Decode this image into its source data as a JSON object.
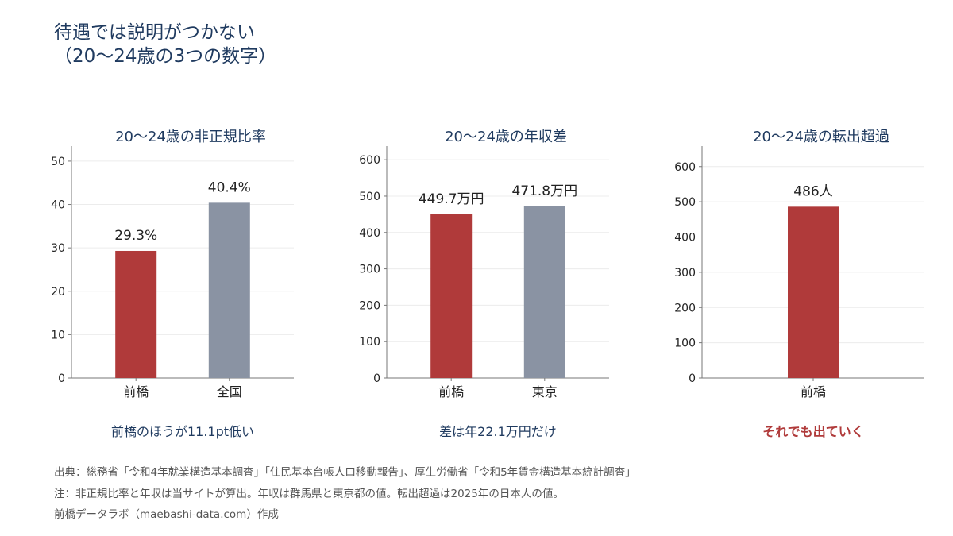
{
  "title": {
    "line1": "待遇では説明がつかない",
    "line2": "（20〜24歳の3つの数字）"
  },
  "colors": {
    "highlight": "#b03a3a",
    "neutral": "#8a93a3",
    "text": "#1f3a5f",
    "axis": "#777777"
  },
  "chart_data": [
    {
      "type": "bar",
      "title": "20〜24歳の非正規比率",
      "categories": [
        "前橋",
        "全国"
      ],
      "values": [
        29.3,
        40.4
      ],
      "labels": [
        "29.3%",
        "40.4%"
      ],
      "ylim": [
        0,
        52
      ],
      "yticks": [
        0,
        10,
        20,
        30,
        40,
        50
      ],
      "grid": true,
      "caption": "前橋のほうが11.1pt低い"
    },
    {
      "type": "bar",
      "title": "20〜24歳の年収差",
      "categories": [
        "前橋",
        "東京"
      ],
      "values": [
        449.7,
        471.8
      ],
      "labels": [
        "449.7万円",
        "471.8万円"
      ],
      "ylim": [
        0,
        620
      ],
      "yticks": [
        0,
        100,
        200,
        300,
        400,
        500,
        600
      ],
      "grid": true,
      "caption": "差は年22.1万円だけ"
    },
    {
      "type": "bar",
      "title": "20〜24歳の転出超過",
      "categories": [
        "前橋"
      ],
      "values": [
        486
      ],
      "labels": [
        "486人"
      ],
      "ylim": [
        0,
        640
      ],
      "yticks": [
        0,
        100,
        200,
        300,
        400,
        500,
        600
      ],
      "grid": true,
      "caption": "それでも出ていく"
    }
  ],
  "notes": {
    "source": "出典：総務省「令和4年就業構造基本調査」「住民基本台帳人口移動報告」、厚生労働省「令和5年賃金構造基本統計調査」",
    "note": "注：非正規比率と年収は当サイトが算出。年収は群馬県と東京都の値。転出超過は2025年の日本人の値。",
    "credit": "前橋データラボ（maebashi-data.com）作成"
  }
}
